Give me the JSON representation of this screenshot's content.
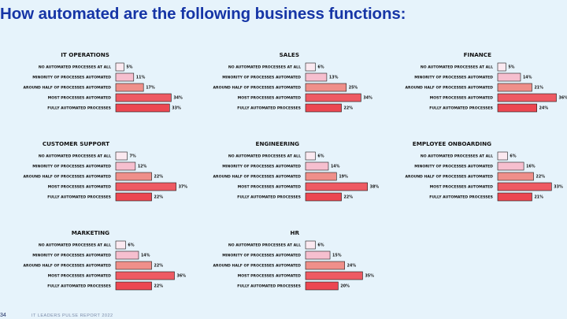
{
  "title": "How automated are the following business functions:",
  "footer": {
    "page_number": "34",
    "report": "IT LEADERS PULSE REPORT 2022"
  },
  "colors": {
    "title": "#1635a6",
    "background": "#e6f3fb",
    "categories": [
      "#fbe9f0",
      "#f6bfcf",
      "#ef8f8a",
      "#ee5a63",
      "#ec4751"
    ],
    "bar_stroke": "#1a1a1a"
  },
  "chart_data": [
    {
      "type": "bar",
      "orientation": "horizontal",
      "title": "IT OPERATIONS",
      "categories": [
        "NO AUTOMATED PROCESSES AT ALL",
        "MINORITY OF PROCESSES AUTOMATED",
        "AROUND HALF OF PROCESSES AUTOMATED",
        "MOST PROCESSES AUTOMATED",
        "FULLY AUTOMATED PROCESSES"
      ],
      "values": [
        5,
        11,
        17,
        34,
        33
      ],
      "value_labels": [
        "5%",
        "11%",
        "17%",
        "34%",
        "33%"
      ]
    },
    {
      "type": "bar",
      "orientation": "horizontal",
      "title": "SALES",
      "categories": [
        "NO AUTOMATED PROCESSES AT ALL",
        "MINORITY OF PROCESSES AUTOMATED",
        "AROUND HALF OF PROCESSES AUTOMATED",
        "MOST PROCESSES AUTOMATED",
        "FULLY AUTOMATED PROCESSES"
      ],
      "values": [
        6,
        13,
        25,
        34,
        22
      ],
      "value_labels": [
        "6%",
        "13%",
        "25%",
        "34%",
        "22%"
      ]
    },
    {
      "type": "bar",
      "orientation": "horizontal",
      "title": "FINANCE",
      "categories": [
        "NO AUTOMATED PROCESSES AT ALL",
        "MINORITY OF PROCESSES AUTOMATED",
        "AROUND HALF OF PROCESSES AUTOMATED",
        "MOST PROCESSES AUTOMATED",
        "FULLY AUTOMATED PROCESSES"
      ],
      "values": [
        5,
        14,
        21,
        36,
        24
      ],
      "value_labels": [
        "5%",
        "14%",
        "21%",
        "36%",
        "24%"
      ]
    },
    {
      "type": "bar",
      "orientation": "horizontal",
      "title": "CUSTOMER SUPPORT",
      "categories": [
        "NO AUTOMATED PROCESSES AT ALL",
        "MINORITY OF PROCESSES AUTOMATED",
        "AROUND HALF OF PROCESSES AUTOMATED",
        "MOST PROCESSES AUTOMATED",
        "FULLY AUTOMATED PROCESSES"
      ],
      "values": [
        7,
        12,
        22,
        37,
        22
      ],
      "value_labels": [
        "7%",
        "12%",
        "22%",
        "37%",
        "22%"
      ]
    },
    {
      "type": "bar",
      "orientation": "horizontal",
      "title": "ENGINEERING",
      "categories": [
        "NO AUTOMATED PROCESSES AT ALL",
        "MINORITY OF PROCESSES AUTOMATED",
        "AROUND HALF OF PROCESSES AUTOMATED",
        "MOST PROCESSES AUTOMATED",
        "FULLY AUTOMATED PROCESSES"
      ],
      "values": [
        6,
        14,
        19,
        38,
        22
      ],
      "value_labels": [
        "6%",
        "14%",
        "19%",
        "38%",
        "22%"
      ]
    },
    {
      "type": "bar",
      "orientation": "horizontal",
      "title": "EMPLOYEE ONBOARDING",
      "categories": [
        "NO AUTOMATED PROCESSES AT ALL",
        "MINORITY OF PROCESSES AUTOMATED",
        "AROUND HALF OF PROCESSES AUTOMATED",
        "MOST PROCESSES AUTOMATED",
        "FULLY AUTOMATED PROCESSES"
      ],
      "values": [
        6,
        16,
        22,
        33,
        21
      ],
      "value_labels": [
        "6%",
        "16%",
        "22%",
        "33%",
        "21%"
      ]
    },
    {
      "type": "bar",
      "orientation": "horizontal",
      "title": "MARKETING",
      "categories": [
        "NO AUTOMATED PROCESSES AT ALL",
        "MINORITY OF PROCESSES AUTOMATED",
        "AROUND HALF OF PROCESSES AUTOMATED",
        "MOST PROCESSES AUTOMATED",
        "FULLY AUTOMATED PROCESSES"
      ],
      "values": [
        6,
        14,
        22,
        36,
        22
      ],
      "value_labels": [
        "6%",
        "14%",
        "22%",
        "36%",
        "22%"
      ]
    },
    {
      "type": "bar",
      "orientation": "horizontal",
      "title": "HR",
      "categories": [
        "NO AUTOMATED PROCESSES AT ALL",
        "MINORITY OF PROCESSES AUTOMATED",
        "AROUND HALF OF PROCESSES AUTOMATED",
        "MOST PROCESSES AUTOMATED",
        "FULLY AUTOMATED PROCESSES"
      ],
      "values": [
        6,
        15,
        24,
        35,
        20
      ],
      "value_labels": [
        "6%",
        "15%",
        "24%",
        "35%",
        "20%"
      ]
    }
  ]
}
